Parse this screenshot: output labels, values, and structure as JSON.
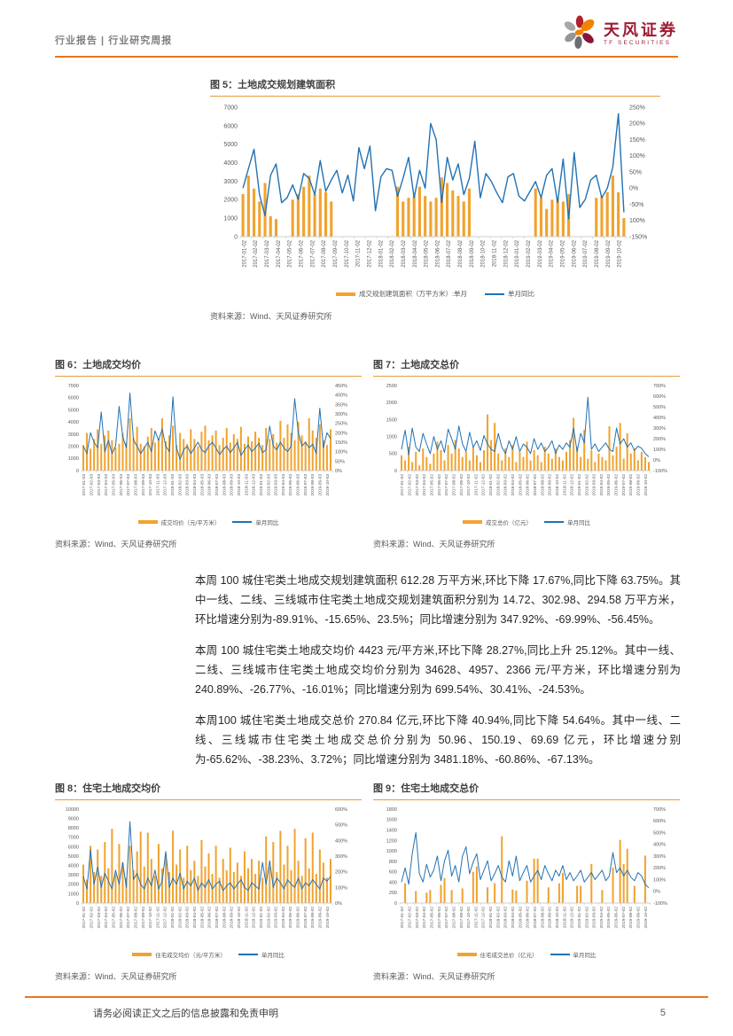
{
  "header": {
    "left_title": "行业报告 | 行业研究周报",
    "brand_cn": "天风证券",
    "brand_en": "TF SECURITIES"
  },
  "colors": {
    "accent_orange": "#E87722",
    "bar_orange": "#F0A32F",
    "line_blue": "#2272B4",
    "brand_red": "#9E1B32"
  },
  "paragraphs": [
    "本周 100 城住宅类土地成交规划建筑面积 612.28 万平方米,环比下降 17.67%,同比下降 63.75%。其中一线、二线、三线城市住宅类土地成交规划建筑面积分别为 14.72、302.98、294.58 万平方米，环比增速分别为-89.91%、-15.65%、23.5%；同比增速分别为 347.92%、-69.99%、-56.45%。",
    "本周 100 城住宅类土地成交均价 4423 元/平方米,环比下降 28.27%,同比上升 25.12%。其中一线、二线、三线城市住宅类土地成交均价分别为 34628、4957、2366 元/平方米，环比增速分别为 240.89%、-26.77%、-16.01%；同比增速分别为 699.54%、30.41%、-24.53%。",
    "本周100 城住宅类土地成交总价 270.84 亿元,环比下降 40.94%,同比下降 54.64%。其中一线、二线、三线城市住宅类土地成交总价分别为 50.96、150.19、69.69 亿元，环比增速分别为-65.62%、-38.23%、3.72%；同比增速分别为 3481.18%、-60.86%、-67.13%。"
  ],
  "footer": {
    "disclaimer": "请务必阅读正文之后的信息披露和免责申明",
    "page_number": "5"
  },
  "chart_data": [
    {
      "id": "fig5",
      "type": "bar",
      "subtype": "bar+line-dual-axis",
      "title": "图 5：土地成交规划建筑面积",
      "legend": [
        "成交规划建筑面积（万平方米）:单月",
        "单月同比"
      ],
      "source": "资料来源：Wind、天风证券研究所",
      "left_axis": {
        "min": 0,
        "max": 7000,
        "tick_labels": [
          "7000",
          "6000",
          "5000",
          "4000",
          "3000",
          "2000",
          "1000",
          "0"
        ]
      },
      "right_axis": {
        "min": -150,
        "max": 250,
        "tick_labels": [
          "250%",
          "200%",
          "150%",
          "100%",
          "50%",
          "0%",
          "-50%",
          "100%",
          "-150%"
        ]
      },
      "x_labels": [
        "2017-01-02",
        "2017-02-02",
        "2017-03-02",
        "2017-04-02",
        "2017-05-02",
        "2017-06-02",
        "2017-07-02",
        "2017-08-02",
        "2017-09-02",
        "2017-10-02",
        "2017-11-02",
        "2017-12-02",
        "2018-01-02",
        "2018-02-02",
        "2018-03-02",
        "2018-04-02",
        "2018-05-02",
        "2018-06-02",
        "2018-07-02",
        "2018-08-02",
        "2018-09-02",
        "2018-10-02",
        "2018-11-02",
        "2018-12-02",
        "2019-01-02",
        "2019-02-02",
        "2019-03-02",
        "2019-04-02",
        "2019-05-02",
        "2019-06-02",
        "2019-07-02",
        "2019-08-02",
        "2019-09-02",
        "2019-10-02"
      ],
      "bars": [
        2300,
        3300,
        2600,
        1900,
        2900,
        1100,
        950,
        0,
        0,
        2000,
        2300,
        2700,
        3300,
        2300,
        2600,
        2400,
        1900,
        0,
        0,
        0,
        0,
        0,
        0,
        0,
        0,
        0,
        0,
        0,
        2700,
        1900,
        2100,
        2200,
        2700,
        2200,
        1900,
        2100,
        3200,
        2900,
        2500,
        2200,
        1900,
        2600,
        0,
        0,
        0,
        0,
        0,
        0,
        0,
        0,
        0,
        0,
        0,
        2600,
        2100,
        1500,
        2000,
        2100,
        1900,
        2300,
        0,
        0,
        0,
        0,
        2100,
        2200,
        2400,
        3300,
        2400,
        1000
      ],
      "line": [
        0,
        60,
        120,
        -20,
        -85,
        40,
        75,
        -45,
        -30,
        10,
        -35,
        45,
        30,
        -20,
        85,
        -10,
        25,
        55,
        -15,
        40,
        -40,
        125,
        60,
        130,
        -70,
        35,
        60,
        55,
        -25,
        30,
        95,
        -30,
        55,
        0,
        200,
        150,
        -45,
        95,
        25,
        75,
        -20,
        30,
        145,
        -30,
        45,
        20,
        -15,
        -45,
        35,
        45,
        -25,
        -40,
        -10,
        20,
        -30,
        40,
        60,
        -45,
        90,
        -95,
        110,
        -60,
        -35,
        25,
        40,
        -30,
        0,
        65,
        230,
        -75
      ]
    },
    {
      "id": "fig6",
      "type": "bar",
      "subtype": "bar+line-dual-axis",
      "title": "图 6：土地成交均价",
      "legend": [
        "成交均价（元/平方米）",
        "单月同比"
      ],
      "source": "资料来源：Wind、天风证券研究所",
      "left_axis": {
        "min": 0,
        "max": 7000,
        "tick_labels": [
          "7000",
          "6000",
          "5000",
          "4000",
          "3000",
          "2000",
          "1000",
          "0"
        ]
      },
      "right_axis": {
        "min": 0,
        "max": 450,
        "tick_labels": [
          "450%",
          "400%",
          "350%",
          "300%",
          "250%",
          "200%",
          "150%",
          "100%",
          "50%",
          "0%"
        ]
      },
      "x_labels": [
        "2017-01-03",
        "2017-02-03",
        "2017-03-03",
        "2017-04-03",
        "2017-05-03",
        "2017-06-03",
        "2017-07-03",
        "2017-08-03",
        "2017-09-03",
        "2017-10-03",
        "2017-11-03",
        "2017-12-03",
        "2018-01-03",
        "2018-02-03",
        "2018-03-03",
        "2018-04-03",
        "2018-05-03",
        "2018-06-03",
        "2018-07-03",
        "2018-08-03",
        "2018-09-03",
        "2018-10-03",
        "2018-11-03",
        "2018-12-03",
        "2019-01-03",
        "2019-02-03",
        "2019-03-03",
        "2019-04-03",
        "2019-05-03",
        "2019-06-03",
        "2019-07-03",
        "2019-08-03",
        "2019-09-03",
        "2019-10-03"
      ],
      "bars": [
        2100,
        3100,
        1800,
        2600,
        3400,
        2200,
        2900,
        3300,
        2500,
        1900,
        2200,
        3100,
        2300,
        4300,
        2700,
        3600,
        2200,
        2000,
        2800,
        3500,
        2300,
        2600,
        4300,
        2400,
        2900,
        3700,
        2100,
        3100,
        2600,
        2200,
        3400,
        2600,
        2000,
        3200,
        3700,
        2500,
        2900,
        3300,
        2100,
        2700,
        3500,
        2300,
        3000,
        2600,
        3600,
        2200,
        2800,
        2400,
        3200,
        2700,
        2100,
        3500,
        2600,
        3000,
        2300,
        4100,
        2700,
        3800,
        3100,
        2500,
        4000,
        2900,
        2400,
        4300,
        3300,
        2700,
        3800,
        2500,
        2100,
        3400
      ],
      "line": [
        130,
        90,
        200,
        150,
        120,
        310,
        100,
        160,
        90,
        130,
        340,
        180,
        120,
        410,
        160,
        130,
        90,
        120,
        150,
        100,
        210,
        160,
        220,
        130,
        100,
        390,
        120,
        60,
        110,
        130,
        90,
        120,
        150,
        110,
        95,
        130,
        150,
        120,
        85,
        110,
        130,
        95,
        120,
        150,
        80,
        110,
        135,
        100,
        120,
        145,
        95,
        110,
        235,
        130,
        110,
        150,
        120,
        100,
        130,
        380,
        200,
        130,
        150,
        120,
        140,
        90,
        330,
        120,
        200,
        170
      ]
    },
    {
      "id": "fig7",
      "type": "bar",
      "subtype": "bar+line-dual-axis",
      "title": "图 7：土地成交总价",
      "legend": [
        "成交总价（亿元）",
        "单月同比"
      ],
      "source": "资料来源：Wind、天风证券研究所",
      "left_axis": {
        "min": 0,
        "max": 2500,
        "tick_labels": [
          "2500",
          "2000",
          "1500",
          "1000",
          "500",
          "0"
        ]
      },
      "right_axis": {
        "min": -100,
        "max": 700,
        "tick_labels": [
          "700%",
          "600%",
          "500%",
          "400%",
          "300%",
          "200%",
          "100%",
          "0%",
          "-100%"
        ]
      },
      "x_labels": [
        "2017-01-02",
        "2017-02-02",
        "2017-03-02",
        "2017-04-02",
        "2017-05-02",
        "2017-06-02",
        "2017-07-02",
        "2017-08-02",
        "2017-09-02",
        "2017-10-02",
        "2017-11-02",
        "2017-12-02",
        "2018-01-02",
        "2018-02-02",
        "2018-03-02",
        "2018-04-02",
        "2018-05-02",
        "2018-06-02",
        "2018-07-02",
        "2018-08-02",
        "2018-09-02",
        "2018-10-02",
        "2018-11-02",
        "2018-12-02",
        "2019-01-02",
        "2019-02-02",
        "2019-03-02",
        "2019-04-02",
        "2019-05-02",
        "2019-06-02",
        "2019-07-02",
        "2019-08-02",
        "2019-09-02",
        "2019-10-02"
      ],
      "bars": [
        450,
        300,
        700,
        250,
        550,
        150,
        650,
        400,
        200,
        500,
        850,
        600,
        300,
        750,
        500,
        900,
        650,
        400,
        550,
        300,
        700,
        450,
        250,
        600,
        1650,
        900,
        1400,
        500,
        300,
        650,
        400,
        750,
        250,
        550,
        400,
        850,
        300,
        600,
        450,
        250,
        700,
        500,
        350,
        650,
        400,
        300,
        550,
        900,
        1550,
        700,
        400,
        1200,
        350,
        600,
        250,
        500,
        400,
        300,
        1300,
        450,
        700,
        1400,
        350,
        1100,
        500,
        650,
        300,
        550,
        400,
        250
      ],
      "line": [
        100,
        280,
        50,
        300,
        120,
        80,
        250,
        150,
        60,
        220,
        100,
        180,
        70,
        290,
        200,
        100,
        320,
        150,
        80,
        260,
        120,
        180,
        90,
        230,
        150,
        100,
        80,
        250,
        120,
        60,
        180,
        100,
        220,
        80,
        150,
        120,
        60,
        200,
        100,
        160,
        80,
        120,
        180,
        60,
        140,
        100,
        160,
        120,
        300,
        80,
        250,
        160,
        590,
        100,
        150,
        80,
        120,
        160,
        100,
        80,
        300,
        150,
        200,
        120,
        160,
        90,
        130,
        110,
        60,
        30
      ]
    },
    {
      "id": "fig8",
      "type": "bar",
      "subtype": "bar+line-dual-axis",
      "title": "图 8：住宅土地成交均价",
      "legend": [
        "住宅成交均价（元/平方米）",
        "单月同比"
      ],
      "source": "资料来源：Wind、天风证券研究所",
      "left_axis": {
        "min": 0,
        "max": 10000,
        "tick_labels": [
          "10000",
          "9000",
          "8000",
          "7000",
          "6000",
          "5000",
          "4000",
          "3000",
          "2000",
          "1000",
          "0"
        ]
      },
      "right_axis": {
        "min": 0,
        "max": 600,
        "tick_labels": [
          "600%",
          "500%",
          "400%",
          "300%",
          "200%",
          "100%",
          "0%"
        ]
      },
      "x_labels": [
        "2017-01-02",
        "2017-02-02",
        "2017-03-02",
        "2017-04-02",
        "2017-05-02",
        "2017-06-02",
        "2017-07-02",
        "2017-08-02",
        "2017-09-02",
        "2017-10-02",
        "2017-11-02",
        "2017-12-02",
        "2018-01-02",
        "2018-02-02",
        "2018-03-02",
        "2018-04-02",
        "2018-05-02",
        "2018-06-02",
        "2018-07-02",
        "2018-08-02",
        "2018-09-02",
        "2018-10-02",
        "2018-11-02",
        "2018-12-02",
        "2019-01-02",
        "2019-02-02",
        "2019-03-02",
        "2019-04-02",
        "2019-05-02",
        "2019-06-02",
        "2019-07-02",
        "2019-08-02",
        "2019-09-02",
        "2019-10-02"
      ],
      "bars": [
        4100,
        2500,
        6100,
        3300,
        5700,
        2900,
        6500,
        3700,
        7900,
        3100,
        6300,
        4300,
        2700,
        6100,
        3500,
        5500,
        7600,
        3900,
        7500,
        4700,
        2900,
        6300,
        3700,
        5100,
        3300,
        7700,
        4100,
        5700,
        2700,
        6100,
        3500,
        4500,
        2900,
        6700,
        3900,
        5300,
        3100,
        6100,
        2700,
        4700,
        3500,
        5900,
        3300,
        4300,
        2900,
        5500,
        3700,
        4700,
        3100,
        4500,
        2700,
        7100,
        3900,
        6500,
        3300,
        7700,
        4100,
        6100,
        3500,
        7900,
        4500,
        2900,
        6900,
        3700,
        7500,
        3100,
        5700,
        4300,
        2700,
        4700
      ],
      "line": [
        170,
        90,
        340,
        120,
        230,
        100,
        190,
        140,
        90,
        210,
        120,
        260,
        100,
        520,
        150,
        190,
        120,
        90,
        160,
        110,
        210,
        90,
        140,
        330,
        100,
        160,
        120,
        190,
        90,
        140,
        110,
        160,
        80,
        130,
        100,
        150,
        90,
        120,
        140,
        80,
        110,
        130,
        90,
        120,
        150,
        100,
        80,
        130,
        110,
        90,
        260,
        120,
        270,
        100,
        160,
        130,
        90,
        150,
        120,
        100,
        160,
        90,
        130,
        110,
        150,
        120,
        90,
        160,
        140,
        170
      ]
    },
    {
      "id": "fig9",
      "type": "bar",
      "subtype": "bar+line-dual-axis",
      "title": "图 9：住宅土地成交总价",
      "legend": [
        "住宅成交总价（亿元）",
        "单月同比"
      ],
      "source": "资料来源：Wind、天风证券研究所",
      "left_axis": {
        "min": 0,
        "max": 1800,
        "tick_labels": [
          "1800",
          "1600",
          "1400",
          "1200",
          "1000",
          "800",
          "600",
          "400",
          "200",
          "0"
        ]
      },
      "right_axis": {
        "min": -100,
        "max": 700,
        "tick_labels": [
          "700%",
          "600%",
          "500%",
          "400%",
          "300%",
          "200%",
          "100%",
          "0%",
          "-100%"
        ]
      },
      "x_labels": [
        "2017-01-02",
        "2017-02-02",
        "2017-03-02",
        "2017-04-02",
        "2017-05-02",
        "2017-06-02",
        "2017-07-02",
        "2017-08-02",
        "2017-09-02",
        "2017-10-02",
        "2017-11-02",
        "2017-12-02",
        "2018-01-02",
        "2018-02-02",
        "2018-03-02",
        "2018-04-02",
        "2018-05-02",
        "2018-06-02",
        "2018-07-02",
        "2018-08-02",
        "2018-09-02",
        "2018-10-02",
        "2018-11-02",
        "2018-12-02",
        "2019-01-02",
        "2019-02-02",
        "2019-03-02",
        "2019-04-02",
        "2019-05-02",
        "2019-06-02",
        "2019-07-02",
        "2019-08-02",
        "2019-09-02",
        "2019-10-02"
      ],
      "bars": [
        0,
        380,
        0,
        0,
        230,
        0,
        0,
        200,
        250,
        0,
        0,
        350,
        480,
        0,
        250,
        0,
        0,
        280,
        0,
        0,
        600,
        700,
        0,
        0,
        300,
        0,
        380,
        0,
        1280,
        0,
        0,
        260,
        240,
        0,
        0,
        430,
        0,
        850,
        850,
        0,
        0,
        300,
        0,
        0,
        380,
        580,
        0,
        0,
        0,
        330,
        330,
        0,
        0,
        750,
        0,
        0,
        250,
        0,
        0,
        680,
        0,
        1210,
        750,
        1040,
        0,
        330,
        0,
        0,
        910,
        0
      ],
      "line": [
        80,
        200,
        60,
        320,
        500,
        150,
        80,
        230,
        120,
        180,
        300,
        90,
        260,
        350,
        130,
        220,
        80,
        300,
        380,
        150,
        250,
        320,
        100,
        180,
        260,
        90,
        150,
        220,
        120,
        80,
        260,
        130,
        300,
        90,
        160,
        220,
        80,
        130,
        180,
        100,
        220,
        150,
        90,
        180,
        130,
        220,
        100,
        160,
        90,
        130,
        180,
        80,
        120,
        160,
        100,
        140,
        180,
        90,
        130,
        330,
        160,
        200,
        130,
        180,
        120,
        90,
        160,
        130,
        60,
        30
      ]
    }
  ]
}
